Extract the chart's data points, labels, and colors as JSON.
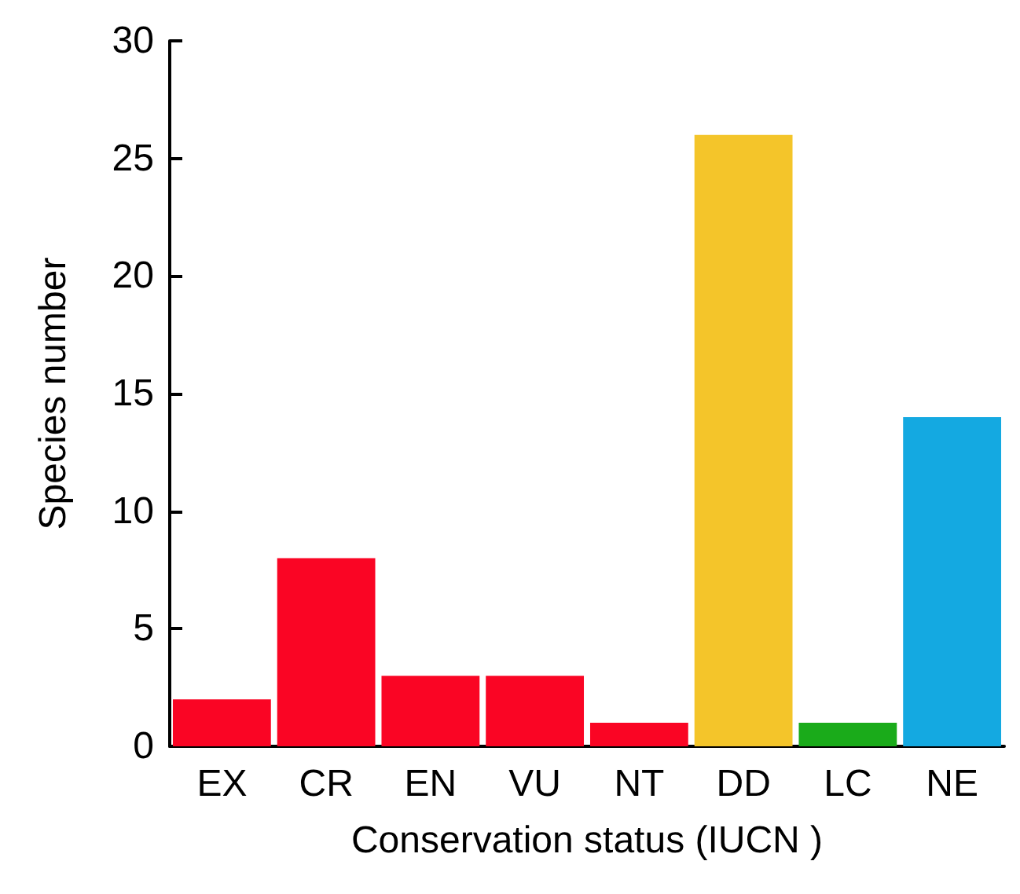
{
  "chart_data": {
    "type": "bar",
    "xlabel": "Conservation status (IUCN )",
    "ylabel": "Species number",
    "categories": [
      "EX",
      "CR",
      "EN",
      "VU",
      "NT",
      "DD",
      "LC",
      "NE"
    ],
    "values": [
      2,
      8,
      3,
      3,
      1,
      26,
      1,
      14
    ],
    "colors": [
      "#fa0524",
      "#fa0524",
      "#fa0524",
      "#fa0524",
      "#fa0524",
      "#f4c52a",
      "#1aab1a",
      "#14a9e1"
    ],
    "ylim": [
      0,
      30
    ],
    "yticks": [
      0,
      5,
      10,
      15,
      20,
      25,
      30
    ]
  }
}
